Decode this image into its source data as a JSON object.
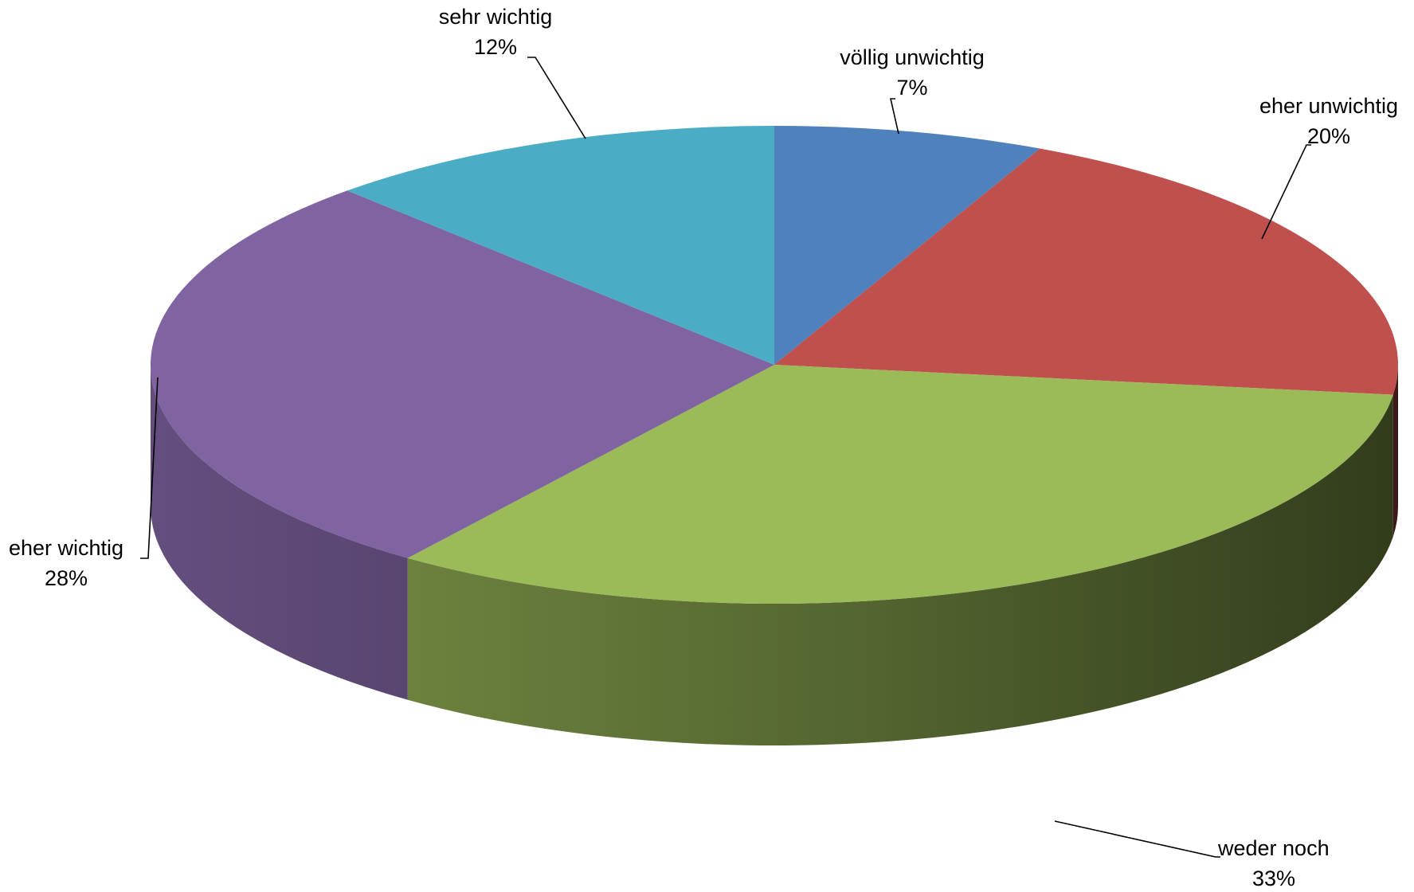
{
  "chart_data": {
    "type": "pie",
    "style": "3d",
    "slices": [
      {
        "label": "völlig unwichtig",
        "value": 7,
        "value_label": "7%",
        "color": "#4F81BD"
      },
      {
        "label": "eher unwichtig",
        "value": 20,
        "value_label": "20%",
        "color": "#C0504D"
      },
      {
        "label": "weder noch",
        "value": 33,
        "value_label": "33%",
        "color": "#9BBB59"
      },
      {
        "label": "eher wichtig",
        "value": 28,
        "value_label": "28%",
        "color": "#8064A2"
      },
      {
        "label": "sehr wichtig",
        "value": 12,
        "value_label": "12%",
        "color": "#4BACC6"
      }
    ],
    "legend": "none"
  }
}
